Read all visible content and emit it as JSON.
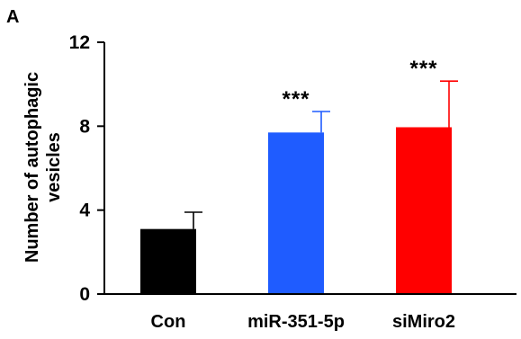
{
  "panel_label": "A",
  "chart_data": {
    "type": "bar",
    "title": "",
    "xlabel": "",
    "ylabel_lines": [
      "Number of autophagic",
      "vesicles"
    ],
    "categories": [
      "Con",
      "miR-351-5p",
      "siMiro2"
    ],
    "values": [
      3.1,
      7.7,
      7.95
    ],
    "errors": [
      0.8,
      1.0,
      2.2
    ],
    "significance": [
      "",
      "***",
      "***"
    ],
    "colors": [
      "#000000",
      "#1f5cff",
      "#ff0000"
    ],
    "ylim": [
      0,
      12
    ],
    "yticks": [
      0,
      4,
      8,
      12
    ],
    "grid": false,
    "legend": "none"
  }
}
